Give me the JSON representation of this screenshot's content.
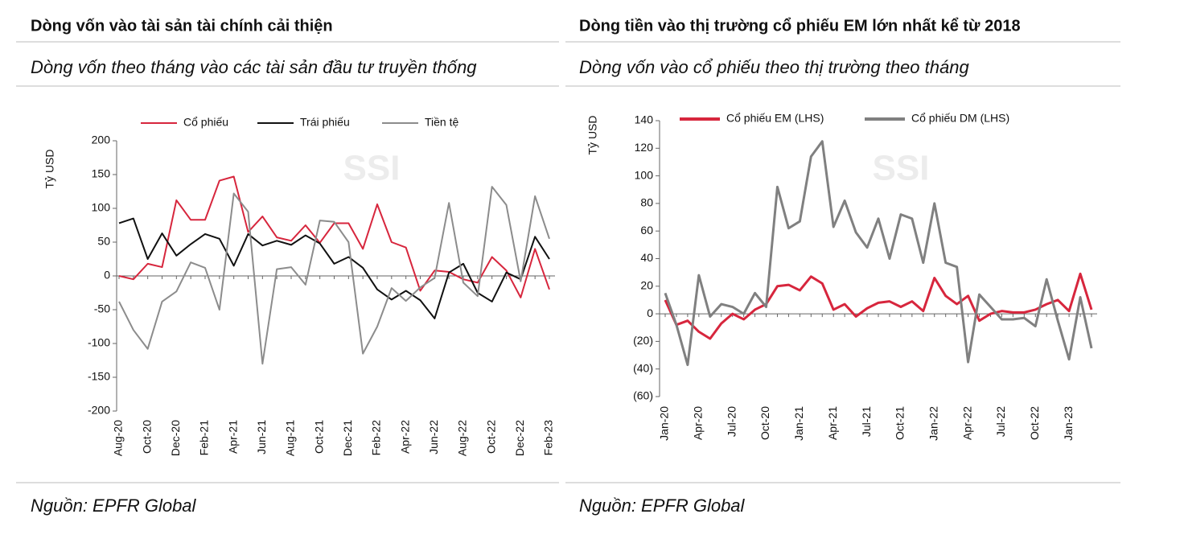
{
  "chart_data": [
    {
      "type": "line",
      "title": "Dòng vốn vào tài sản tài chính cải thiện",
      "subtitle": "Dòng vốn theo tháng vào các tài sản đầu tư truyền thống",
      "y_label": "Tỷ USD",
      "watermark": "SSI",
      "source": "Nguồn: EPFR Global",
      "categories": [
        "Aug-20",
        null,
        "Oct-20",
        null,
        "Dec-20",
        null,
        "Feb-21",
        null,
        "Apr-21",
        null,
        "Jun-21",
        null,
        "Aug-21",
        null,
        "Oct-21",
        null,
        "Dec-21",
        null,
        "Feb-22",
        null,
        "Apr-22",
        null,
        "Jun-22",
        null,
        "Aug-22",
        null,
        "Oct-22",
        null,
        "Dec-22",
        null,
        "Feb-23"
      ],
      "series": [
        {
          "name": "Cổ phiếu",
          "color": "#d7263d",
          "values": [
            0,
            -5,
            18,
            13,
            112,
            83,
            83,
            141,
            147,
            65,
            88,
            57,
            52,
            75,
            49,
            78,
            78,
            40,
            106,
            50,
            42,
            -22,
            8,
            6,
            -5,
            -10,
            28,
            8,
            -32,
            40,
            -20
          ]
        },
        {
          "name": "Trái phiếu",
          "color": "#111111",
          "values": [
            78,
            85,
            25,
            63,
            30,
            47,
            62,
            55,
            15,
            62,
            45,
            52,
            46,
            60,
            48,
            18,
            28,
            12,
            -20,
            -35,
            -22,
            -36,
            -63,
            5,
            18,
            -25,
            -38,
            5,
            -5,
            58,
            25
          ]
        },
        {
          "name": "Tiền tệ",
          "color": "#8c8c8c",
          "values": [
            -38,
            -80,
            -108,
            -38,
            -23,
            20,
            12,
            -50,
            122,
            95,
            -130,
            10,
            13,
            -13,
            82,
            80,
            50,
            -115,
            -75,
            -18,
            -37,
            -17,
            -3,
            108,
            -10,
            -30,
            132,
            105,
            -8,
            118,
            55
          ]
        }
      ],
      "ylim": [
        -200,
        200
      ],
      "yticks": [
        -200,
        -150,
        -100,
        -50,
        0,
        50,
        100,
        150,
        200
      ],
      "grid": false,
      "legend": "top"
    },
    {
      "type": "line",
      "title": "Dòng tiền vào thị trường cổ phiếu EM lớn nhất kể từ 2018",
      "subtitle": "Dòng vốn vào cổ phiếu theo thị trường theo tháng",
      "y_label": "Tỷ USD",
      "watermark": "SSI",
      "source": "Nguồn: EPFR Global",
      "categories": [
        "Jan-20",
        null,
        null,
        "Apr-20",
        null,
        null,
        "Jul-20",
        null,
        null,
        "Oct-20",
        null,
        null,
        "Jan-21",
        null,
        null,
        "Apr-21",
        null,
        null,
        "Jul-21",
        null,
        null,
        "Oct-21",
        null,
        null,
        "Jan-22",
        null,
        null,
        "Apr-22",
        null,
        null,
        "Jul-22",
        null,
        null,
        "Oct-22",
        null,
        null,
        "Jan-23",
        null,
        null
      ],
      "series": [
        {
          "name": "Cổ phiếu EM (LHS)",
          "color": "#d7263d",
          "values": [
            10,
            -8,
            -5,
            -13,
            -18,
            -7,
            0,
            -4,
            3,
            7,
            20,
            21,
            17,
            27,
            22,
            3,
            7,
            -2,
            4,
            8,
            9,
            5,
            9,
            2,
            26,
            13,
            7,
            13,
            -5,
            0,
            2,
            1,
            1,
            3,
            7,
            10,
            2,
            29,
            3
          ]
        },
        {
          "name": "Cổ phiếu DM (LHS)",
          "color": "#808080",
          "values": [
            15,
            -8,
            -37,
            28,
            -2,
            7,
            5,
            0,
            15,
            5,
            92,
            62,
            67,
            114,
            125,
            63,
            82,
            59,
            48,
            69,
            40,
            72,
            69,
            37,
            80,
            37,
            34,
            -35,
            14,
            5,
            -4,
            -4,
            -3,
            -9,
            25,
            -5,
            -33,
            12,
            -25
          ]
        }
      ],
      "ylim": [
        -60,
        140
      ],
      "yticks": [
        {
          "value": -60,
          "label": "(60)"
        },
        {
          "value": -40,
          "label": "(40)"
        },
        {
          "value": -20,
          "label": "(20)"
        },
        0,
        20,
        40,
        60,
        80,
        100,
        120,
        140
      ],
      "negative_tick_color": "#d7263d",
      "grid": false,
      "legend": "top"
    }
  ]
}
